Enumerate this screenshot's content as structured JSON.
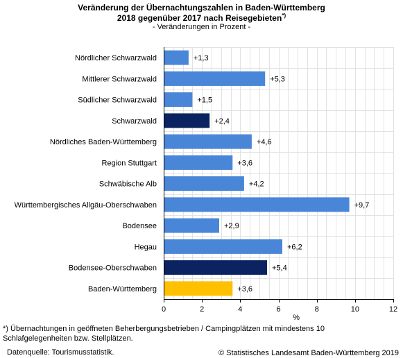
{
  "header": {
    "title_line1": "Veränderung der Übernachtungszahlen in Baden-Württemberg",
    "title_line2": "2018 gegenüber 2017 nach Reisegebieten",
    "title_marker": "*)",
    "subtitle": "- Veränderungen in Prozent -"
  },
  "footer": {
    "footnote": "*) Übernachtungen in geöffneten Beherbergungsbetrieben / Campingplätzen mit mindestens 10 Schlafgelegenheiten bzw. Stellplätzen.",
    "source": "Datenquelle: Tourismusstatistik.",
    "copyright": "© Statistisches Landesamt Baden-Württemberg 2019"
  },
  "chart_data": {
    "type": "bar",
    "orientation": "horizontal",
    "title": "Veränderung der Übernachtungszahlen in Baden-Württemberg 2018 gegenüber 2017 nach Reisegebieten*)",
    "subtitle": "- Veränderungen in Prozent -",
    "xlabel": "%",
    "ylabel": "",
    "xlim": [
      0,
      12
    ],
    "xticks": [
      0,
      2,
      4,
      6,
      8,
      10,
      12
    ],
    "grid": true,
    "categories": [
      "Nördlicher Schwarzwald",
      "Mittlerer Schwarzwald",
      "Südlicher Schwarzwald",
      "Schwarzwald",
      "Nördliches Baden-Württemberg",
      "Region Stuttgart",
      "Schwäbische Alb",
      "Württembergisches Allgäu-Oberschwaben",
      "Bodensee",
      "Hegau",
      "Bodensee-Oberschwaben",
      "Baden-Württemberg"
    ],
    "values": [
      1.3,
      5.3,
      1.5,
      2.4,
      4.6,
      3.6,
      4.2,
      9.7,
      2.9,
      6.2,
      5.4,
      3.6
    ],
    "value_labels": [
      "+1,3",
      "+5,3",
      "+1,5",
      "+2,4",
      "+4,6",
      "+3,6",
      "+4,2",
      "+9,7",
      "+2,9",
      "+6,2",
      "+5,4",
      "+3,6"
    ],
    "bar_colors": [
      "#4a86d8",
      "#4a86d8",
      "#4a86d8",
      "#0b2461",
      "#4a86d8",
      "#4a86d8",
      "#4a86d8",
      "#4a86d8",
      "#4a86d8",
      "#4a86d8",
      "#0b2461",
      "#ffc000"
    ]
  }
}
